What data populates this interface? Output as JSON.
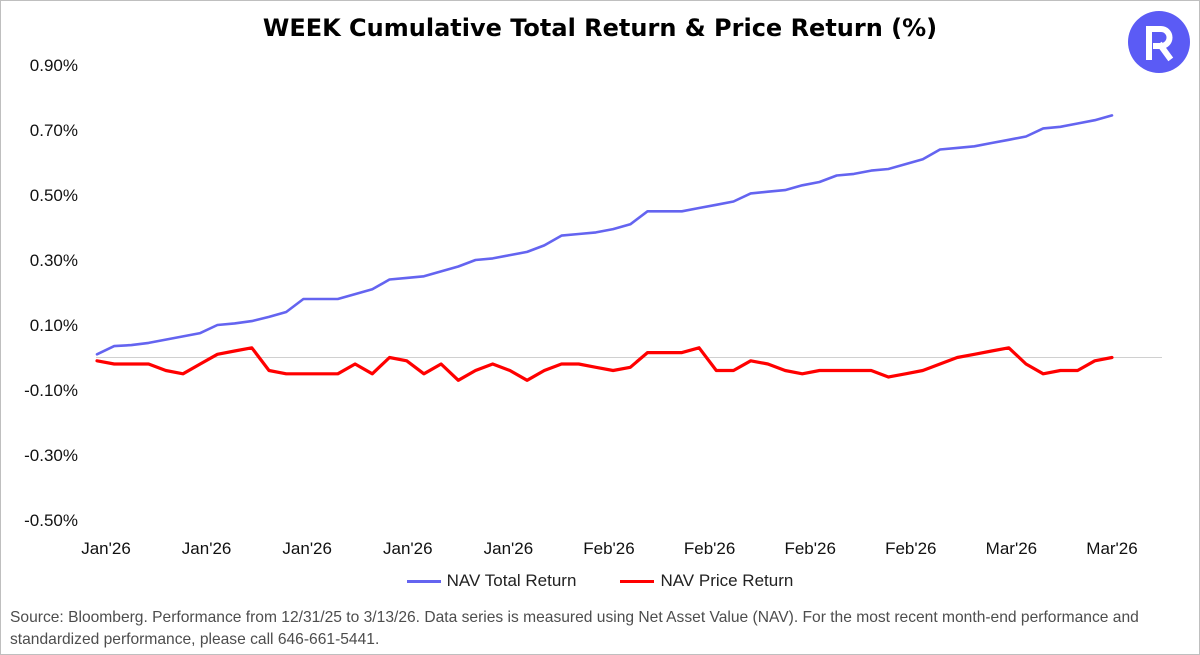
{
  "title": "WEEK Cumulative Total Return & Price Return (%)",
  "logo": {
    "icon": "rex-r-logo-icon",
    "color": "#5b5bf5"
  },
  "source": "Source: Bloomberg. Performance from 12/31/25 to 3/13/26. Data series is measured using Net Asset Value (NAV). For the most recent month-end performance and standardized performance, please call 646-661-5441.",
  "legend": [
    {
      "label": "NAV Total Return",
      "color": "#6464f0"
    },
    {
      "label": "NAV Price Return",
      "color": "#ff0000"
    }
  ],
  "chart_data": {
    "type": "line",
    "title": "WEEK Cumulative Total Return & Price Return (%)",
    "xlabel": "",
    "ylabel": "",
    "ylim": [
      -0.5,
      0.9
    ],
    "yticks": [
      0.9,
      0.7,
      0.5,
      0.3,
      0.1,
      -0.1,
      -0.3,
      -0.5
    ],
    "ytick_labels": [
      "0.90%",
      "0.70%",
      "0.50%",
      "0.30%",
      "0.10%",
      "-0.10%",
      "-0.30%",
      "-0.50%"
    ],
    "xtick_labels": [
      "Jan'26",
      "Jan'26",
      "Jan'26",
      "Jan'26",
      "Jan'26",
      "Feb'26",
      "Feb'26",
      "Feb'26",
      "Feb'26",
      "Mar'26",
      "Mar'26"
    ],
    "x": [
      "2025-12-31",
      "2026-01-01",
      "2026-01-02",
      "2026-01-05",
      "2026-01-06",
      "2026-01-07",
      "2026-01-08",
      "2026-01-09",
      "2026-01-10",
      "2026-01-12",
      "2026-01-13",
      "2026-01-14",
      "2026-01-16",
      "2026-01-17",
      "2026-01-19",
      "2026-01-20",
      "2026-01-21",
      "2026-01-22",
      "2026-01-23",
      "2026-01-24",
      "2026-01-26",
      "2026-01-27",
      "2026-01-28",
      "2026-01-29",
      "2026-01-30",
      "2026-01-31",
      "2026-02-02",
      "2026-02-03",
      "2026-02-04",
      "2026-02-05",
      "2026-02-06",
      "2026-02-07",
      "2026-02-09",
      "2026-02-10",
      "2026-02-11",
      "2026-02-12",
      "2026-02-13",
      "2026-02-14",
      "2026-02-17",
      "2026-02-18",
      "2026-02-19",
      "2026-02-20",
      "2026-02-21",
      "2026-02-23",
      "2026-02-24",
      "2026-02-25",
      "2026-02-26",
      "2026-02-27",
      "2026-02-28",
      "2026-03-02",
      "2026-03-03",
      "2026-03-04",
      "2026-03-05",
      "2026-03-06",
      "2026-03-07",
      "2026-03-09",
      "2026-03-10",
      "2026-03-11",
      "2026-03-12",
      "2026-03-13"
    ],
    "series": [
      {
        "name": "NAV Total Return",
        "color": "#6464f0",
        "values": [
          0.01,
          0.035,
          0.038,
          0.045,
          0.055,
          0.065,
          0.075,
          0.1,
          0.105,
          0.112,
          0.125,
          0.14,
          0.18,
          0.18,
          0.18,
          0.195,
          0.21,
          0.24,
          0.245,
          0.25,
          0.265,
          0.28,
          0.3,
          0.305,
          0.315,
          0.325,
          0.345,
          0.375,
          0.38,
          0.385,
          0.395,
          0.41,
          0.45,
          0.45,
          0.45,
          0.46,
          0.47,
          0.48,
          0.505,
          0.51,
          0.515,
          0.53,
          0.54,
          0.56,
          0.565,
          0.575,
          0.58,
          0.595,
          0.61,
          0.64,
          0.645,
          0.65,
          0.66,
          0.67,
          0.68,
          0.705,
          0.71,
          0.72,
          0.73,
          0.745
        ]
      },
      {
        "name": "NAV Price Return",
        "color": "#ff0000",
        "values": [
          -0.01,
          -0.02,
          -0.02,
          -0.02,
          -0.04,
          -0.05,
          -0.02,
          0.01,
          0.02,
          0.03,
          -0.04,
          -0.05,
          -0.05,
          -0.05,
          -0.05,
          -0.02,
          -0.05,
          0.0,
          -0.01,
          -0.05,
          -0.02,
          -0.07,
          -0.04,
          -0.02,
          -0.04,
          -0.07,
          -0.04,
          -0.02,
          -0.02,
          -0.03,
          -0.04,
          -0.03,
          0.015,
          0.015,
          0.015,
          0.03,
          -0.04,
          -0.04,
          -0.01,
          -0.02,
          -0.04,
          -0.05,
          -0.04,
          -0.04,
          -0.04,
          -0.04,
          -0.06,
          -0.05,
          -0.04,
          -0.02,
          0.0,
          0.01,
          0.02,
          0.03,
          -0.02,
          -0.05,
          -0.04,
          -0.04,
          -0.01,
          0.0
        ]
      }
    ],
    "grid": false,
    "zero_line": true,
    "legend_position": "bottom"
  }
}
